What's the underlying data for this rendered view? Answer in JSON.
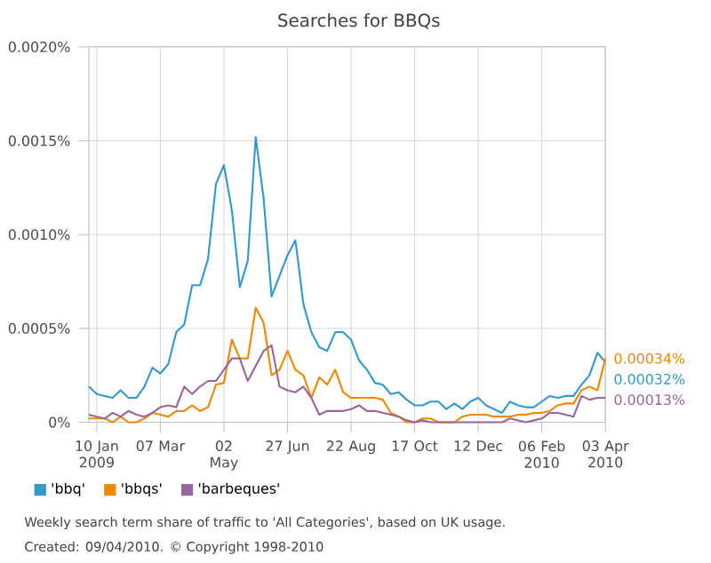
{
  "chart_data": {
    "type": "line",
    "title": "Searches for BBQs",
    "x": [
      "2009-01-03",
      "2009-01-10",
      "2009-01-17",
      "2009-01-24",
      "2009-01-31",
      "2009-02-07",
      "2009-02-14",
      "2009-02-21",
      "2009-02-28",
      "2009-03-07",
      "2009-03-14",
      "2009-03-21",
      "2009-03-28",
      "2009-04-04",
      "2009-04-11",
      "2009-04-18",
      "2009-04-25",
      "2009-05-02",
      "2009-05-09",
      "2009-05-16",
      "2009-05-23",
      "2009-05-30",
      "2009-06-06",
      "2009-06-13",
      "2009-06-20",
      "2009-06-27",
      "2009-07-04",
      "2009-07-11",
      "2009-07-18",
      "2009-07-25",
      "2009-08-01",
      "2009-08-08",
      "2009-08-15",
      "2009-08-22",
      "2009-08-29",
      "2009-09-05",
      "2009-09-12",
      "2009-09-19",
      "2009-09-26",
      "2009-10-03",
      "2009-10-10",
      "2009-10-17",
      "2009-10-24",
      "2009-10-31",
      "2009-11-07",
      "2009-11-14",
      "2009-11-21",
      "2009-11-28",
      "2009-12-05",
      "2009-12-12",
      "2009-12-19",
      "2009-12-26",
      "2010-01-02",
      "2010-01-09",
      "2010-01-16",
      "2010-01-23",
      "2010-01-30",
      "2010-02-06",
      "2010-02-13",
      "2010-02-20",
      "2010-02-27",
      "2010-03-06",
      "2010-03-13",
      "2010-03-20",
      "2010-03-27",
      "2010-04-03"
    ],
    "series": [
      {
        "name": "'bbq'",
        "color": "#3399cc",
        "values": [
          0.00019,
          0.00015,
          0.00014,
          0.00013,
          0.00017,
          0.00013,
          0.00013,
          0.00019,
          0.00029,
          0.00026,
          0.00031,
          0.00048,
          0.00052,
          0.00073,
          0.00073,
          0.00087,
          0.00127,
          0.00137,
          0.00113,
          0.00072,
          0.00086,
          0.00152,
          0.00119,
          0.00067,
          0.00078,
          0.00089,
          0.00097,
          0.00063,
          0.00048,
          0.0004,
          0.00038,
          0.00048,
          0.00048,
          0.00044,
          0.00033,
          0.00028,
          0.00021,
          0.0002,
          0.00015,
          0.00016,
          0.00012,
          9e-05,
          9e-05,
          0.00011,
          0.00011,
          7e-05,
          0.0001,
          7e-05,
          0.00011,
          0.00013,
          9e-05,
          7e-05,
          5e-05,
          0.00011,
          9e-05,
          8e-05,
          8e-05,
          0.00011,
          0.00014,
          0.00013,
          0.00014,
          0.00014,
          0.0002,
          0.00025,
          0.00037,
          0.00032
        ]
      },
      {
        "name": "'bbqs'",
        "color": "#ee8800",
        "values": [
          2e-05,
          2e-05,
          2e-05,
          0,
          3e-05,
          0,
          0,
          2e-05,
          5e-05,
          4e-05,
          3e-05,
          6e-05,
          6e-05,
          9e-05,
          6e-05,
          8e-05,
          0.0002,
          0.00021,
          0.00044,
          0.00034,
          0.00034,
          0.00061,
          0.00053,
          0.00025,
          0.00028,
          0.00038,
          0.00028,
          0.00025,
          0.00013,
          0.00024,
          0.0002,
          0.00028,
          0.00016,
          0.00013,
          0.00013,
          0.00013,
          0.00013,
          0.00012,
          5e-05,
          3e-05,
          0,
          0,
          2e-05,
          2e-05,
          0,
          0,
          0,
          3e-05,
          4e-05,
          4e-05,
          4e-05,
          3e-05,
          3e-05,
          3e-05,
          4e-05,
          4e-05,
          5e-05,
          5e-05,
          6e-05,
          9e-05,
          0.0001,
          0.0001,
          0.00017,
          0.00019,
          0.00017,
          0.00034
        ]
      },
      {
        "name": "'barbeques'",
        "color": "#996699",
        "values": [
          4e-05,
          3e-05,
          2e-05,
          5e-05,
          3e-05,
          6e-05,
          4e-05,
          3e-05,
          5e-05,
          8e-05,
          9e-05,
          8e-05,
          0.00019,
          0.00015,
          0.00019,
          0.00022,
          0.00022,
          0.00028,
          0.00034,
          0.00034,
          0.00022,
          0.0003,
          0.00038,
          0.00041,
          0.00019,
          0.00017,
          0.00016,
          0.00019,
          0.00013,
          4e-05,
          6e-05,
          6e-05,
          6e-05,
          7e-05,
          9e-05,
          6e-05,
          6e-05,
          5e-05,
          4e-05,
          3e-05,
          1e-05,
          0,
          1e-05,
          0,
          0,
          0,
          0,
          0,
          0,
          0,
          0,
          0,
          0,
          2e-05,
          1e-05,
          0,
          1e-05,
          2e-05,
          5e-05,
          5e-05,
          4e-05,
          3e-05,
          0.00014,
          0.00012,
          0.00013,
          0.00013
        ]
      }
    ],
    "xlim": [
      "2009-01-03",
      "2010-04-03"
    ],
    "xticks": [
      {
        "value": "2009-01-10",
        "label": "10 Jan 2009"
      },
      {
        "value": "2009-03-07",
        "label": "07 Mar"
      },
      {
        "value": "2009-05-02",
        "label": "02 May"
      },
      {
        "value": "2009-06-27",
        "label": "27 Jun"
      },
      {
        "value": "2009-08-22",
        "label": "22 Aug"
      },
      {
        "value": "2009-10-17",
        "label": "17 Oct"
      },
      {
        "value": "2009-12-12",
        "label": "12 Dec"
      },
      {
        "value": "2010-02-06",
        "label": "06 Feb 2010"
      },
      {
        "value": "2010-04-03",
        "label": "03 Apr 2010"
      }
    ],
    "ylim": [
      0,
      0.002
    ],
    "yticks": [
      {
        "value": 0,
        "label": "0%"
      },
      {
        "value": 0.0005,
        "label": "0.0005%"
      },
      {
        "value": 0.001,
        "label": "0.0010%"
      },
      {
        "value": 0.0015,
        "label": "0.0015%"
      },
      {
        "value": 0.002,
        "label": "0.0020%"
      }
    ],
    "grid": true,
    "legend": "bottom",
    "annotations": [
      {
        "text": "0.00034%",
        "x": "2010-04-03",
        "y": 0.00034
      },
      {
        "text": "0.00032%",
        "x": "2010-04-03",
        "y": 0.00032
      },
      {
        "text": "0.00013%",
        "x": "2010-04-03",
        "y": 0.00013
      },
      "Weekly search term share of traffic to 'All Categories', based on UK usage.",
      "Created: 09/04/2010. © Copyright 1998-2010"
    ]
  }
}
